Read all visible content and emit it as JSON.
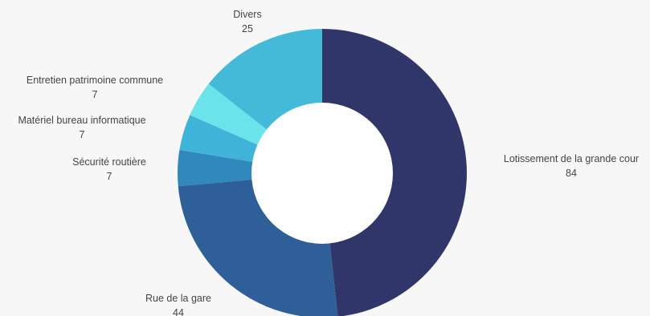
{
  "chart_data": {
    "type": "pie",
    "variant": "donut",
    "title": "",
    "legend": "none",
    "slices": [
      {
        "label": "Lotissement de la grande cour",
        "value": 84,
        "color": "#303669"
      },
      {
        "label": "Rue de la gare",
        "value": 44,
        "color": "#2e5f99"
      },
      {
        "label": "Sécurité routière",
        "value": 7,
        "color": "#3088bd"
      },
      {
        "label": "Matériel bureau informatique",
        "value": 7,
        "color": "#40b3d8"
      },
      {
        "label": "Entretien patrimoine commune",
        "value": 7,
        "color": "#6ae3ea"
      },
      {
        "label": "Divers",
        "value": 25,
        "color": "#44bad9"
      }
    ]
  }
}
